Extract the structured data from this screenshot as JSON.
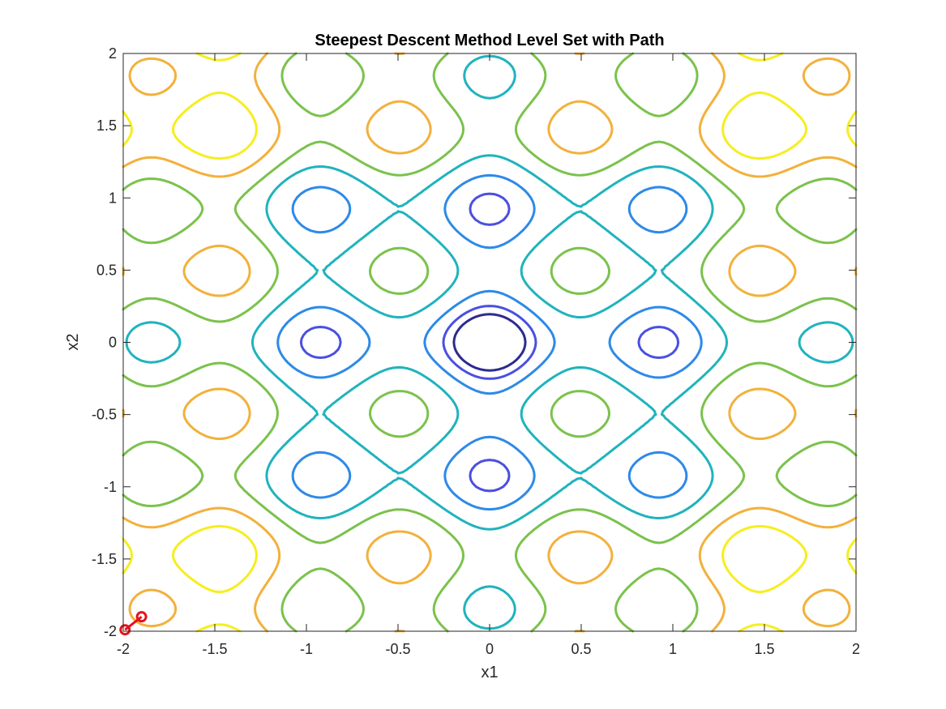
{
  "chart_data": {
    "type": "contour",
    "title": "Steepest Descent Method Level Set with Path",
    "xlabel": "x1",
    "ylabel": "x2",
    "xlim": [
      -2,
      2
    ],
    "ylim": [
      -2,
      2
    ],
    "x_ticks": [
      -2,
      -1.5,
      -1,
      -0.5,
      0,
      0.5,
      1,
      1.5,
      2
    ],
    "y_ticks": [
      -2,
      -1.5,
      -1,
      -0.5,
      0,
      0.5,
      1,
      1.5,
      2
    ],
    "x_tick_labels": [
      "-2",
      "-1.5",
      "-1",
      "-0.5",
      "0",
      "0.5",
      "1",
      "1.5",
      "2"
    ],
    "y_tick_labels": [
      "-2",
      "-1.5",
      "-1",
      "-0.5",
      "0",
      "0.5",
      "1",
      "1.5",
      "2"
    ],
    "grid": false,
    "box": true,
    "contour_levels": [
      {
        "level": 1,
        "color": "#2c2b8f"
      },
      {
        "level": 2,
        "color": "#4a50e0"
      },
      {
        "level": 3,
        "color": "#2d8ae8"
      },
      {
        "level": 4,
        "color": "#20b3bd"
      },
      {
        "level": 5,
        "color": "#7bc24c"
      },
      {
        "level": 6,
        "color": "#f2b13c"
      },
      {
        "level": 7,
        "color": "#f6ee1f"
      }
    ],
    "path": {
      "color": "#e3131c",
      "marker": "circle",
      "points": [
        {
          "x": -1.99,
          "y": -1.99
        },
        {
          "x": -1.9,
          "y": -1.9
        }
      ]
    }
  }
}
